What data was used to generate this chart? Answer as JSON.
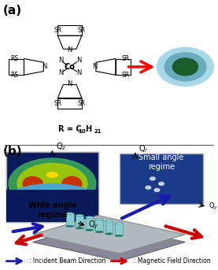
{
  "fig_width": 2.77,
  "fig_height": 3.43,
  "dpi": 100,
  "bg_color": "#ffffff",
  "panel_a_label": "(a)",
  "panel_b_label": "(b)",
  "formula_text": "R = C",
  "formula_subscript": "10",
  "formula_suffix": "H",
  "formula_subscript2": "21",
  "wide_angle_text": "Wide angle\nregime",
  "small_angle_text": "Small angle\nregime",
  "legend_blue_text": ": Incident Beam Direction",
  "legend_red_text": ": Magnetic Field Direction",
  "arrow_color_blue": "#1a1aaa",
  "arrow_color_red": "#cc1111",
  "wide_panel_bg": "#000080",
  "small_panel_bg": "#000080",
  "circle_outer_color": "#a8d8e8",
  "circle_mid_color": "#6aabbc",
  "circle_inner_color": "#1a5c2a",
  "red_arrow_color": "#cc0000"
}
